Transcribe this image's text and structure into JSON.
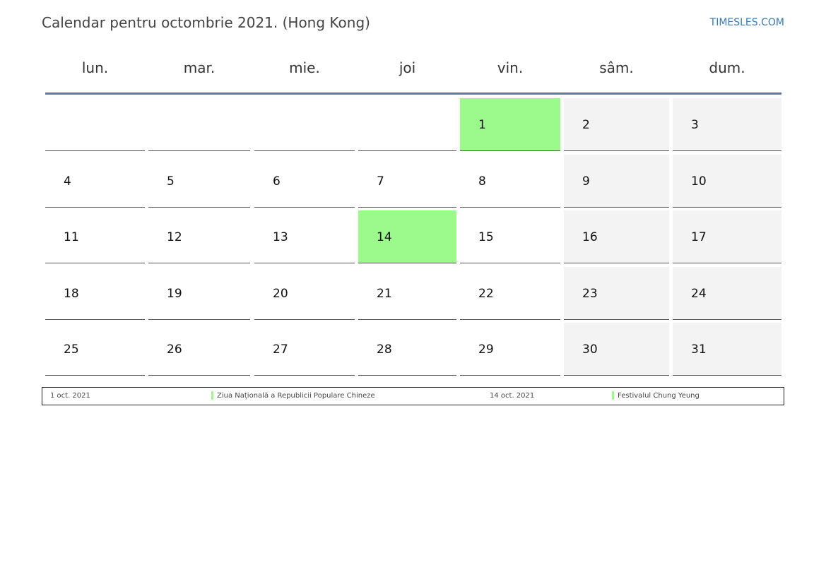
{
  "header": {
    "title": "Calendar pentru octombrie 2021. (Hong Kong)",
    "brand": "TIMESLES.COM"
  },
  "weekdays": [
    "lun.",
    "mar.",
    "mie.",
    "joi",
    "vin.",
    "sâm.",
    "dum."
  ],
  "weeks": [
    [
      "",
      "",
      "",
      "",
      "1",
      "2",
      "3"
    ],
    [
      "4",
      "5",
      "6",
      "7",
      "8",
      "9",
      "10"
    ],
    [
      "11",
      "12",
      "13",
      "14",
      "15",
      "16",
      "17"
    ],
    [
      "18",
      "19",
      "20",
      "21",
      "22",
      "23",
      "24"
    ],
    [
      "25",
      "26",
      "27",
      "28",
      "29",
      "30",
      "31"
    ]
  ],
  "highlighted_days": [
    "1",
    "14"
  ],
  "colors": {
    "holiday": "#9cf98b",
    "weekend": "#f3f3f3",
    "header_rule": "#5a7aa6",
    "brand": "#3a7ab8"
  },
  "legend": [
    {
      "date": "1 oct. 2021",
      "name": "Ziua Națională a Republicii Populare Chineze"
    },
    {
      "date": "14 oct. 2021",
      "name": "Festivalul Chung Yeung"
    }
  ]
}
